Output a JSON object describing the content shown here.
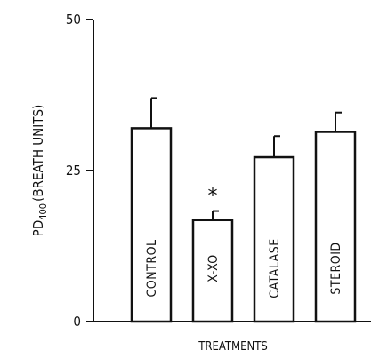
{
  "chart_data": {
    "type": "bar",
    "categories": [
      "CONTROL",
      "X-XO",
      "CATALASE",
      "STEROID"
    ],
    "values": [
      32,
      16.8,
      27.2,
      31.4
    ],
    "errors": [
      5,
      1.5,
      3.5,
      3.2
    ],
    "annotations": [
      "",
      "*",
      "",
      ""
    ],
    "ylabel": {
      "base": "PD",
      "sub": "400",
      "rest": "(BREATH UNITS)"
    },
    "xlabel": "TREATMENTS",
    "ylim": [
      0,
      50
    ],
    "yticks": [
      0,
      25,
      50
    ],
    "grid": false,
    "colors": {
      "bar_fill": "#ffffff",
      "stroke": "#111111"
    }
  }
}
